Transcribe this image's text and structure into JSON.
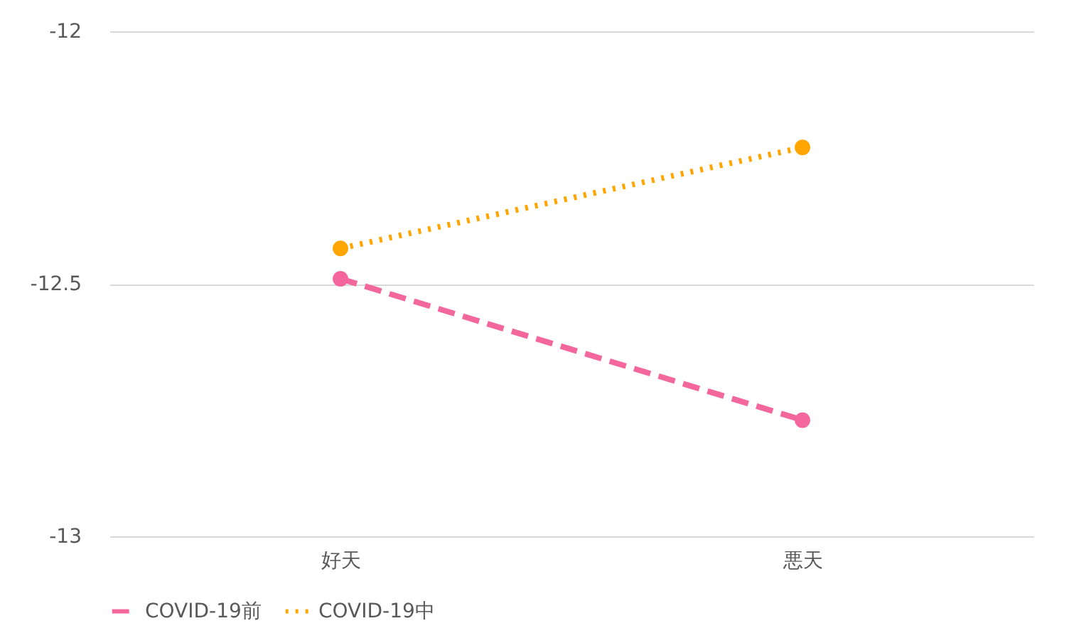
{
  "chart_data": {
    "type": "line",
    "categories": [
      "好天",
      "悪天"
    ],
    "series": [
      {
        "name": "COVID-19前",
        "color": "#f4679d",
        "values": [
          -12.49,
          -12.77
        ],
        "line_style": "dashed"
      },
      {
        "name": "COVID-19中",
        "color": "#ffa500",
        "values": [
          -12.43,
          -12.23
        ],
        "line_style": "dotted"
      }
    ],
    "ylim": [
      -13,
      -12
    ],
    "yticks": [
      -13,
      -12.5,
      -12
    ],
    "grid": "y",
    "legend": "bottom",
    "marker": "circle"
  }
}
